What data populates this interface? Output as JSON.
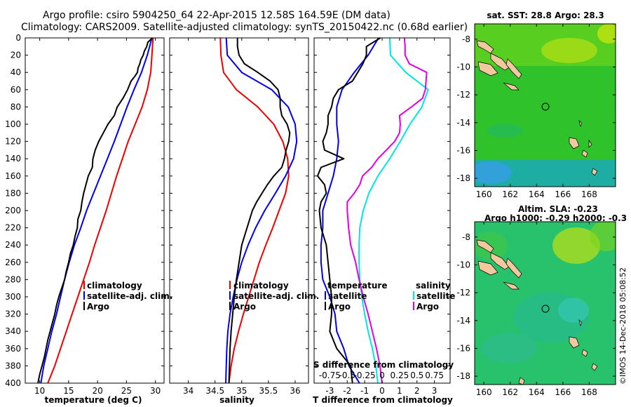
{
  "title": {
    "line1": "Argo profile: csiro 5904250_64 22-Apr-2015 12.58S 164.59E (DM data)",
    "line2": "Climatology: CARS2009. Satellite-adjusted climatology: synTS_20150422.nc (0.68d earlier)"
  },
  "credit": "©IMOS 14-Dec-2018 05:08:52",
  "colors": {
    "climatology": "#ee0000",
    "satellite": "#0000ee",
    "argo": "#000000",
    "sat_salinity": "#00e5e5",
    "clim_salinity": "#e000e0"
  },
  "chart_data": [
    {
      "type": "line",
      "panel": "temperature",
      "xlabel": "temperature (deg C)",
      "ylabel": "",
      "xlim": [
        7.5,
        31.5
      ],
      "ylim": [
        400,
        0
      ],
      "xticks": [
        "10",
        "15",
        "20",
        "25",
        "30"
      ],
      "yticks": [
        "0",
        "20",
        "40",
        "60",
        "80",
        "100",
        "120",
        "140",
        "160",
        "180",
        "200",
        "220",
        "240",
        "260",
        "280",
        "300",
        "320",
        "340",
        "360",
        "380",
        "400"
      ],
      "legend": {
        "position": "bottom-right",
        "items": [
          "climatology",
          "satellite-adj. clim.",
          "Argo"
        ]
      },
      "series": [
        {
          "name": "climatology",
          "color": "#ee0000",
          "depth": [
            0,
            20,
            40,
            60,
            80,
            100,
            120,
            140,
            160,
            180,
            200,
            220,
            240,
            260,
            280,
            300,
            320,
            340,
            360,
            380,
            400
          ],
          "values": [
            29.6,
            29.4,
            29.2,
            28.6,
            27.7,
            26.5,
            25.3,
            24.3,
            23.3,
            22.4,
            21.5,
            20.5,
            19.5,
            18.6,
            17.6,
            16.6,
            15.6,
            14.6,
            13.6,
            12.6,
            11.4
          ]
        },
        {
          "name": "satellite-adj. clim.",
          "color": "#0000ee",
          "depth": [
            0,
            20,
            40,
            60,
            80,
            100,
            120,
            140,
            160,
            180,
            200,
            220,
            240,
            260,
            280,
            300,
            320,
            340,
            360,
            380,
            400
          ],
          "values": [
            29.4,
            28.6,
            27.6,
            26.3,
            25.1,
            24.0,
            22.9,
            21.7,
            20.5,
            19.3,
            18.1,
            17.1,
            16.0,
            15.1,
            14.3,
            13.6,
            12.9,
            12.1,
            11.4,
            10.7,
            10.2
          ]
        },
        {
          "name": "Argo",
          "color": "#000000",
          "depth": [
            0,
            5,
            10,
            15,
            20,
            25,
            30,
            35,
            40,
            45,
            50,
            60,
            70,
            80,
            90,
            100,
            110,
            120,
            130,
            140,
            150,
            160,
            170,
            180,
            190,
            200,
            210,
            220,
            230,
            240,
            250,
            260,
            270,
            280,
            290,
            300,
            310,
            320,
            330,
            340,
            350,
            360,
            370,
            380,
            390,
            400
          ],
          "values": [
            29.5,
            28.7,
            28.5,
            28.1,
            27.9,
            27.5,
            27.3,
            27.0,
            26.9,
            26.4,
            25.8,
            25.2,
            24.4,
            23.4,
            22.9,
            21.8,
            21.0,
            20.2,
            19.6,
            19.2,
            19.1,
            18.4,
            18.0,
            17.6,
            17.3,
            17.1,
            16.6,
            16.5,
            16.1,
            15.8,
            15.3,
            15.0,
            14.6,
            14.3,
            13.8,
            13.3,
            12.9,
            12.6,
            12.2,
            11.8,
            11.4,
            11.1,
            10.8,
            10.4,
            10.0,
            9.7
          ]
        }
      ]
    },
    {
      "type": "line",
      "panel": "salinity",
      "xlabel": "salinity",
      "xlim": [
        33.65,
        36.25
      ],
      "ylim": [
        400,
        0
      ],
      "xticks": [
        "34",
        "34.5",
        "35",
        "35.5",
        "36"
      ],
      "legend": {
        "position": "bottom-right",
        "items": [
          "climatology",
          "satellite-adj. clim.",
          "Argo"
        ]
      },
      "series": [
        {
          "name": "climatology",
          "color": "#ee0000",
          "depth": [
            0,
            20,
            40,
            60,
            80,
            100,
            120,
            140,
            160,
            180,
            200,
            220,
            240,
            260,
            280,
            300,
            320,
            340,
            360,
            380,
            400
          ],
          "values": [
            34.6,
            34.61,
            34.66,
            34.9,
            35.3,
            35.6,
            35.77,
            35.86,
            35.88,
            35.82,
            35.7,
            35.58,
            35.45,
            35.33,
            35.23,
            35.13,
            35.03,
            34.94,
            34.86,
            34.8,
            34.76
          ]
        },
        {
          "name": "satellite-adj. clim.",
          "color": "#0000ee",
          "depth": [
            0,
            20,
            40,
            60,
            80,
            100,
            120,
            140,
            160,
            180,
            200,
            220,
            240,
            260,
            280,
            300,
            320,
            340,
            360,
            380,
            400
          ],
          "values": [
            34.71,
            34.73,
            35.0,
            35.56,
            35.87,
            36.0,
            36.03,
            35.97,
            35.82,
            35.63,
            35.43,
            35.26,
            35.12,
            35.0,
            34.91,
            34.84,
            34.78,
            34.74,
            34.72,
            34.71,
            34.7
          ]
        },
        {
          "name": "Argo",
          "color": "#000000",
          "depth": [
            0,
            10,
            20,
            30,
            40,
            50,
            60,
            70,
            80,
            90,
            100,
            110,
            120,
            130,
            140,
            150,
            160,
            170,
            180,
            190,
            200,
            220,
            240,
            260,
            280,
            300,
            320,
            340,
            360,
            380,
            400
          ],
          "values": [
            34.92,
            34.92,
            34.95,
            35.05,
            35.3,
            35.53,
            35.68,
            35.72,
            35.72,
            35.75,
            35.85,
            35.9,
            35.88,
            35.83,
            35.8,
            35.75,
            35.6,
            35.48,
            35.38,
            35.28,
            35.2,
            35.1,
            35.0,
            34.95,
            34.9,
            34.86,
            34.83,
            34.8,
            34.78,
            34.77,
            34.76
          ]
        }
      ]
    },
    {
      "type": "line",
      "panel": "differences",
      "xlabel": "T difference from climatology",
      "xlabel2": "S difference from climatology",
      "xlim": [
        -3.9,
        3.9
      ],
      "xticks": [
        "-3",
        "-2",
        "-1",
        "0",
        "1",
        "2",
        "3"
      ],
      "xticks2": [
        "-0.75",
        "-0.5",
        "-0.25",
        "0",
        "0.25",
        "0.5",
        "0.75"
      ],
      "xlim2": [
        -0.975,
        0.975
      ],
      "ylim": [
        400,
        0
      ],
      "legend": {
        "temperature_title": "temperature",
        "salinity_title": "salinity",
        "items": [
          "satellite",
          "Argo",
          "satellite",
          "Argo"
        ]
      },
      "series": [
        {
          "name": "T satellite",
          "color": "#0000ee",
          "depth": [
            0,
            20,
            40,
            60,
            80,
            100,
            120,
            140,
            160,
            180,
            200,
            220,
            240,
            260,
            280,
            300,
            320,
            340,
            360,
            380,
            400
          ],
          "values": [
            -0.2,
            -0.8,
            -1.6,
            -2.3,
            -2.6,
            -2.6,
            -2.5,
            -2.6,
            -2.8,
            -3.1,
            -3.4,
            -3.4,
            -3.5,
            -3.5,
            -3.4,
            -3.0,
            -2.7,
            -2.6,
            -2.2,
            -1.9,
            -1.3
          ]
        },
        {
          "name": "T Argo",
          "color": "#000000",
          "depth": [
            0,
            10,
            20,
            30,
            40,
            50,
            60,
            70,
            80,
            90,
            100,
            110,
            120,
            130,
            140,
            150,
            160,
            170,
            180,
            190,
            200,
            220,
            240,
            260,
            280,
            300,
            320,
            340,
            360,
            380,
            400
          ],
          "values": [
            -0.1,
            -0.9,
            -0.9,
            -1.1,
            -1.4,
            -1.7,
            -2.5,
            -2.8,
            -2.9,
            -3.1,
            -3.1,
            -3.2,
            -3.4,
            -3.3,
            -2.2,
            -3.5,
            -3.7,
            -3.3,
            -3.2,
            -3.5,
            -3.6,
            -3.5,
            -3.2,
            -3.1,
            -3.0,
            -2.9,
            -2.9,
            -3.0,
            -2.6,
            -1.8,
            -1.7
          ]
        },
        {
          "name": "S satellite",
          "color": "#00e5e5",
          "depth": [
            0,
            20,
            40,
            60,
            80,
            100,
            120,
            140,
            160,
            180,
            200,
            220,
            240,
            260,
            280,
            300,
            320,
            340,
            360,
            380,
            400
          ],
          "values": [
            0.11,
            0.12,
            0.34,
            0.66,
            0.57,
            0.4,
            0.26,
            0.11,
            -0.06,
            -0.19,
            -0.27,
            -0.32,
            -0.33,
            -0.33,
            -0.32,
            -0.29,
            -0.25,
            -0.2,
            -0.14,
            -0.09,
            -0.06
          ]
        },
        {
          "name": "S Argo",
          "color": "#e000e0",
          "depth": [
            0,
            10,
            20,
            30,
            40,
            50,
            60,
            70,
            80,
            90,
            100,
            110,
            120,
            130,
            140,
            150,
            160,
            170,
            180,
            190,
            200,
            220,
            240,
            260,
            280,
            300,
            320,
            340,
            360,
            380,
            400
          ],
          "values": [
            0.32,
            0.33,
            0.33,
            0.39,
            0.64,
            0.63,
            0.62,
            0.58,
            0.42,
            0.25,
            0.26,
            0.25,
            0.18,
            0.06,
            -0.06,
            -0.15,
            -0.28,
            -0.32,
            -0.4,
            -0.5,
            -0.5,
            -0.48,
            -0.45,
            -0.38,
            -0.33,
            -0.27,
            -0.2,
            -0.14,
            -0.08,
            -0.03,
            0.0
          ]
        }
      ]
    },
    {
      "type": "heatmap",
      "panel": "sst-map",
      "title": "sat. SST: 28.8 Argo: 28.3",
      "xticks": [
        "160",
        "162",
        "164",
        "166",
        "168"
      ],
      "yticks": [
        "-8",
        "-10",
        "-12",
        "-14",
        "-16",
        "-18"
      ],
      "xlim": [
        159.3,
        170.0
      ],
      "ylim": [
        -18.6,
        -6.9
      ],
      "argo_position": {
        "lon": 164.59,
        "lat": -12.58
      }
    },
    {
      "type": "heatmap",
      "panel": "sla-map",
      "title": "Altim. SLA: -0.23",
      "subtitle": "Argo h1000: -0.29 h2000: -0.3",
      "xticks": [
        "160",
        "162",
        "164",
        "166",
        "168"
      ],
      "yticks": [
        "-8",
        "-10",
        "-12",
        "-14",
        "-16",
        "-18"
      ],
      "xlim": [
        159.3,
        170.0
      ],
      "ylim": [
        -18.6,
        -6.9
      ],
      "argo_position": {
        "lon": 164.59,
        "lat": -12.58
      }
    }
  ]
}
